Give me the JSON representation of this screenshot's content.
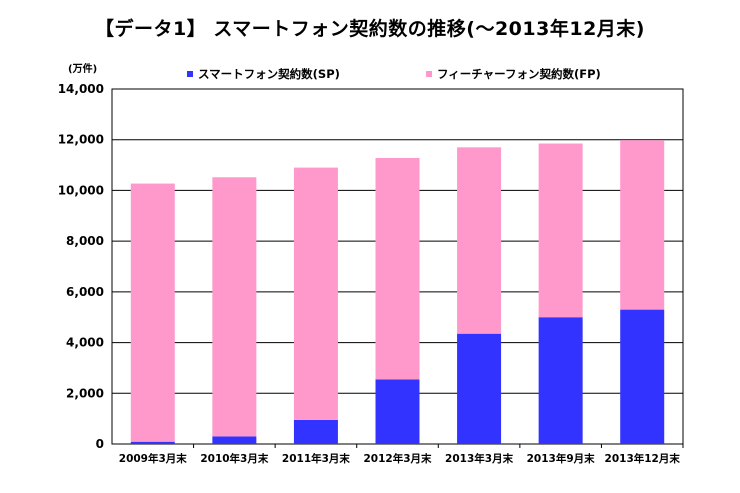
{
  "chart_data": {
    "type": "bar",
    "stacked": true,
    "title": "【データ1】 スマートフォン契約数の推移(～2013年12月末)",
    "unit_label": "(万件)",
    "categories": [
      "2009年3月末",
      "2010年3月末",
      "2011年3月末",
      "2012年3月末",
      "2013年3月末",
      "2013年9月末",
      "2013年12月末"
    ],
    "series": [
      {
        "name": "スマートフォン契約数(SP)",
        "color": "#3333ff",
        "values": [
          90,
          300,
          950,
          2550,
          4350,
          5000,
          5300
        ]
      },
      {
        "name": "フィーチャーフォン契約数(FP)",
        "color": "#ff99cc",
        "values": [
          10180,
          10220,
          9950,
          8730,
          7350,
          6850,
          6680
        ]
      }
    ],
    "ylim": [
      0,
      14000
    ],
    "yticks": [
      0,
      2000,
      4000,
      6000,
      8000,
      10000,
      12000,
      14000
    ],
    "ytick_labels": [
      "0",
      "2,000",
      "4,000",
      "6,000",
      "8,000",
      "10,000",
      "12,000",
      "14,000"
    ],
    "grid": true,
    "legend_position": "top"
  }
}
